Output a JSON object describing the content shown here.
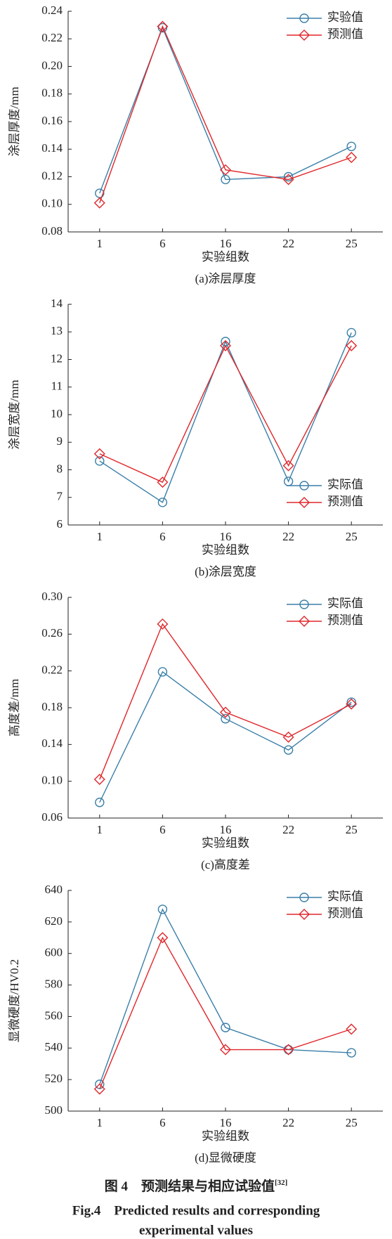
{
  "chart_data": [
    {
      "type": "line",
      "ylabel": "涂层厚度/mm",
      "xlabel": "实验组数",
      "caption": "(a)涂层厚度",
      "categories": [
        "1",
        "6",
        "16",
        "22",
        "25"
      ],
      "series": [
        {
          "name": "实验值",
          "color": "#3a7fa8",
          "marker": "circle",
          "values": [
            0.108,
            0.228,
            0.118,
            0.12,
            0.142
          ]
        },
        {
          "name": "预测值",
          "color": "#e0262a",
          "marker": "diamond",
          "values": [
            0.101,
            0.229,
            0.125,
            0.118,
            0.134
          ]
        }
      ],
      "ylim": [
        0.08,
        0.24
      ],
      "yticks": [
        0.08,
        {
          "value": 0.1,
          "label": "0.10"
        },
        0.12,
        0.14,
        0.16,
        0.18,
        {
          "value": 0.2,
          "label": "0.20"
        },
        0.22,
        0.24
      ],
      "legend": "upper right"
    },
    {
      "type": "line",
      "ylabel": "涂层宽度/mm",
      "xlabel": "实验组数",
      "caption": "(b)涂层宽度",
      "categories": [
        "1",
        "6",
        "16",
        "22",
        "25"
      ],
      "series": [
        {
          "name": "实际值",
          "color": "#3a7fa8",
          "marker": "circle",
          "values": [
            8.32,
            6.82,
            12.65,
            7.58,
            12.97
          ]
        },
        {
          "name": "预测值",
          "color": "#e0262a",
          "marker": "diamond",
          "values": [
            8.58,
            7.55,
            12.5,
            8.15,
            12.5
          ]
        }
      ],
      "ylim": [
        6,
        14
      ],
      "yticks": [
        6,
        7,
        8,
        9,
        10,
        11,
        12,
        13,
        14
      ],
      "legend": "lower right"
    },
    {
      "type": "line",
      "ylabel": "高度差/mm",
      "xlabel": "实验组数",
      "caption": "(c)高度差",
      "categories": [
        "1",
        "6",
        "16",
        "22",
        "25"
      ],
      "series": [
        {
          "name": "实际值",
          "color": "#3a7fa8",
          "marker": "circle",
          "values": [
            0.077,
            0.219,
            0.168,
            0.134,
            0.186
          ]
        },
        {
          "name": "预测值",
          "color": "#e0262a",
          "marker": "diamond",
          "values": [
            0.102,
            0.271,
            0.175,
            0.148,
            0.184
          ]
        }
      ],
      "ylim": [
        0.06,
        0.3
      ],
      "yticks": [
        0.06,
        {
          "value": 0.1,
          "label": "0.10"
        },
        0.14,
        0.18,
        0.22,
        0.26,
        {
          "value": 0.3,
          "label": "0.30"
        }
      ],
      "legend": "upper right"
    },
    {
      "type": "line",
      "ylabel": "显微硬度/HV0.2",
      "xlabel": "实验组数",
      "caption": "(d)显微硬度",
      "categories": [
        "1",
        "6",
        "16",
        "22",
        "25"
      ],
      "series": [
        {
          "name": "实际值",
          "color": "#3a7fa8",
          "marker": "circle",
          "values": [
            517,
            628,
            553,
            539,
            537
          ]
        },
        {
          "name": "预测值",
          "color": "#e0262a",
          "marker": "diamond",
          "values": [
            514,
            610,
            539,
            539,
            552
          ]
        }
      ],
      "ylim": [
        500,
        640
      ],
      "yticks": [
        500,
        520,
        540,
        560,
        580,
        600,
        620,
        640
      ],
      "legend": "upper right"
    }
  ],
  "figure_caption": {
    "zh": "图 4　预测结果与相应试验值",
    "ref": "[32]",
    "en_line1": "Fig.4　Predicted results and corresponding",
    "en_line2": "experimental values"
  }
}
